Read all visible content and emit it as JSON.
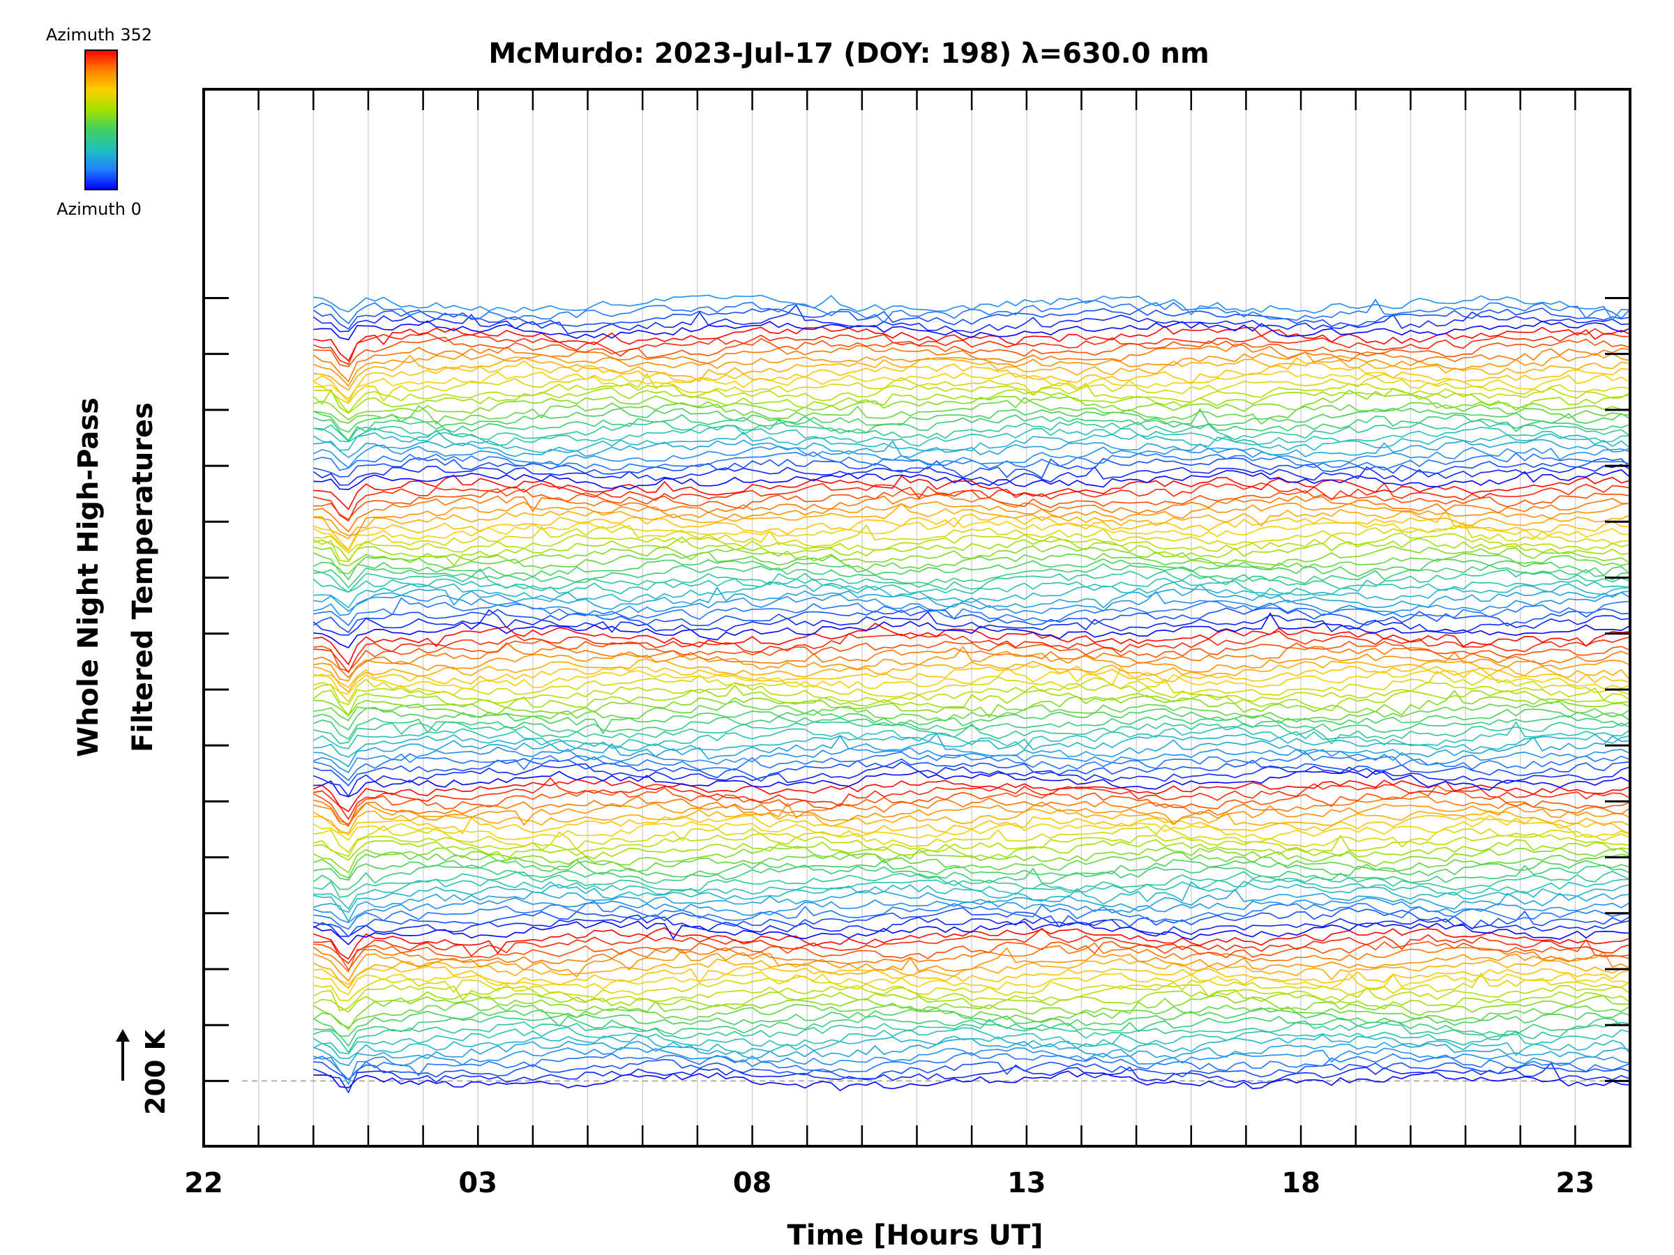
{
  "chart_data": {
    "type": "line",
    "title": "McMurdo: 2023-Jul-17 (DOY: 198) λ=630.0 nm",
    "xlabel": "Time [Hours UT]",
    "ylabel_line1": "Whole Night High-Pass",
    "ylabel_line2": "Filtered Temperatures",
    "scale_label": "200 K",
    "x_tick_labels": [
      "22",
      "03",
      "08",
      "13",
      "18",
      "23"
    ],
    "x_tick_hours_since_start": [
      0,
      5,
      10,
      15,
      20,
      25
    ],
    "x_range_hours_since_start": [
      0,
      26
    ],
    "x_data_start_hours_since_start": 2.0,
    "y_major_tick_count": 15,
    "y_range_K": [
      -250,
      3800
    ],
    "baseline_K": 0,
    "stacked_series_count": 125,
    "series_offset_K": 24,
    "series_groups_count": 6,
    "series_per_group": 24,
    "legend": {
      "top_label": "Azimuth 352",
      "bottom_label": "Azimuth 0",
      "colormap": "rainbow",
      "colors": [
        "#ff0000",
        "#ff8000",
        "#ffd000",
        "#a0e000",
        "#40d060",
        "#20c0c0",
        "#2080ff",
        "#0000ff"
      ]
    },
    "series_color_order_within_group": "blue (azimuth 0) at bottom to red (azimuth 352) at top"
  }
}
